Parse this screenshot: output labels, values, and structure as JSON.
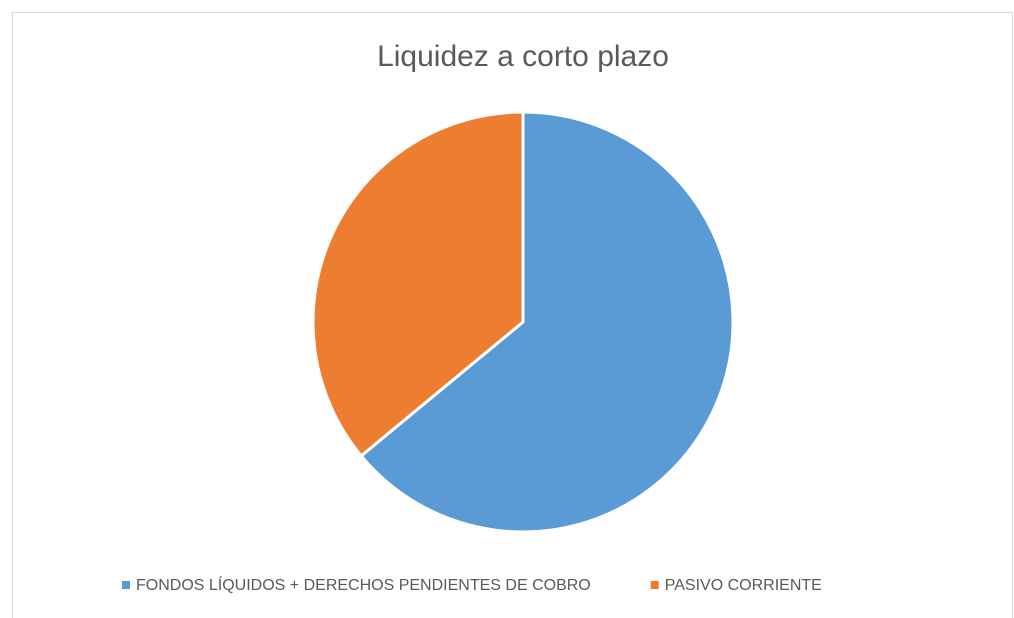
{
  "chart_data": {
    "type": "pie",
    "title": "Liquidez a corto plazo",
    "categories": [
      "FONDOS LÍQUIDOS + DERECHOS PENDIENTES DE COBRO",
      "PASIVO CORRIENTE"
    ],
    "values": [
      64,
      36
    ],
    "colors": [
      "#5b9bd5",
      "#ed7d31"
    ],
    "legend": "bottom"
  }
}
